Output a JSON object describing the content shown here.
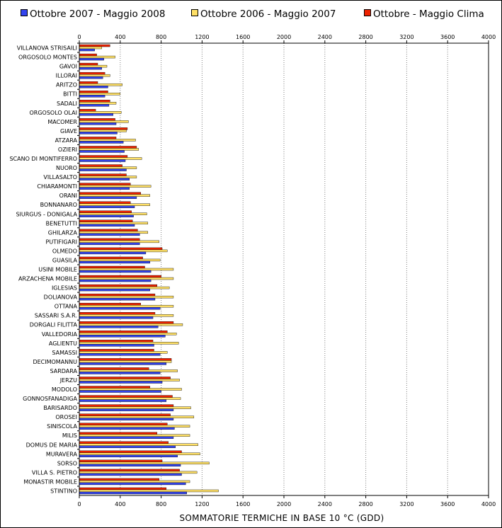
{
  "colors": {
    "s1": "#3344ee",
    "s2": "#ffe066",
    "s3": "#ee2200",
    "frame": "#000000",
    "grid": "#808080"
  },
  "chart_data": {
    "type": "bar",
    "orientation": "horizontal",
    "title": "",
    "xlabel": "SOMMATORIE TERMICHE IN BASE 10 °C (GDD)",
    "ylabel": "",
    "xlim": [
      0,
      4000
    ],
    "xticks": [
      0,
      400,
      800,
      1200,
      1600,
      2000,
      2400,
      2800,
      3200,
      3600,
      4000
    ],
    "grid": true,
    "legend_position": "top",
    "categories": [
      "VILLANOVA STRISAILI",
      "ORGOSOLO MONTES",
      "GAVOI",
      "ILLORAI",
      "ARITZO",
      "BITTI",
      "SADALI",
      "ORGOSOLO OLAI",
      "MACOMER",
      "GIAVE",
      "ATZARA",
      "OZIERI",
      "SCANO DI MONTIFERRO",
      "NUORO",
      "VILLASALTO",
      "CHIARAMONTI",
      "ORANI",
      "BONNANARO",
      "SIURGUS - DONIGALA",
      "BENETUTTI",
      "GHILARZA",
      "PUTIFIGARI",
      "OLMEDO",
      "GUASILA",
      "USINI MOBILE",
      "ARZACHENA MOBILE",
      "IGLESIAS",
      "DOLIANOVA",
      "OTTANA",
      "SASSARI S.A.R.",
      "DORGALI FILITTA",
      "VALLEDORIA",
      "AGLIENTU",
      "SAMASSI",
      "DECIMOMANNU",
      "SARDARA",
      "JERZU",
      "MODOLO",
      "GONNOSFANADIGA",
      "BARISARDO",
      "OROSEI",
      "SINISCOLA",
      "MILIS",
      "DOMUS DE MARIA",
      "MURAVERA",
      "SORSO",
      "VILLA S. PIETRO",
      "MONASTIR MOBILE",
      "STINTINO"
    ],
    "series": [
      {
        "name": "Ottobre - Maggio Clima",
        "values": [
          300,
          170,
          180,
          250,
          180,
          280,
          300,
          160,
          350,
          470,
          360,
          560,
          470,
          420,
          460,
          500,
          600,
          500,
          510,
          520,
          570,
          590,
          810,
          620,
          640,
          800,
          760,
          740,
          600,
          740,
          920,
          860,
          720,
          730,
          900,
          680,
          890,
          690,
          910,
          920,
          890,
          860,
          760,
          870,
          1000,
          810,
          980,
          780,
          850
        ]
      },
      {
        "name": "Ottobre 2006 - Maggio 2007",
        "values": [
          220,
          350,
          270,
          300,
          420,
          400,
          360,
          410,
          480,
          460,
          550,
          580,
          610,
          560,
          560,
          700,
          690,
          690,
          660,
          670,
          670,
          780,
          860,
          790,
          920,
          920,
          880,
          920,
          920,
          920,
          1010,
          950,
          970,
          860,
          900,
          960,
          980,
          1000,
          990,
          1090,
          1120,
          1080,
          1080,
          1160,
          1180,
          1270,
          1150,
          1080,
          1360
        ]
      },
      {
        "name": "Ottobre 2007 - Maggio 2008",
        "values": [
          150,
          240,
          220,
          230,
          280,
          250,
          290,
          330,
          360,
          370,
          430,
          440,
          450,
          460,
          490,
          490,
          560,
          540,
          530,
          540,
          590,
          590,
          650,
          690,
          700,
          700,
          690,
          740,
          790,
          720,
          770,
          840,
          730,
          790,
          850,
          790,
          810,
          800,
          850,
          920,
          920,
          930,
          920,
          940,
          960,
          990,
          1000,
          1040,
          1050
        ]
      }
    ]
  }
}
